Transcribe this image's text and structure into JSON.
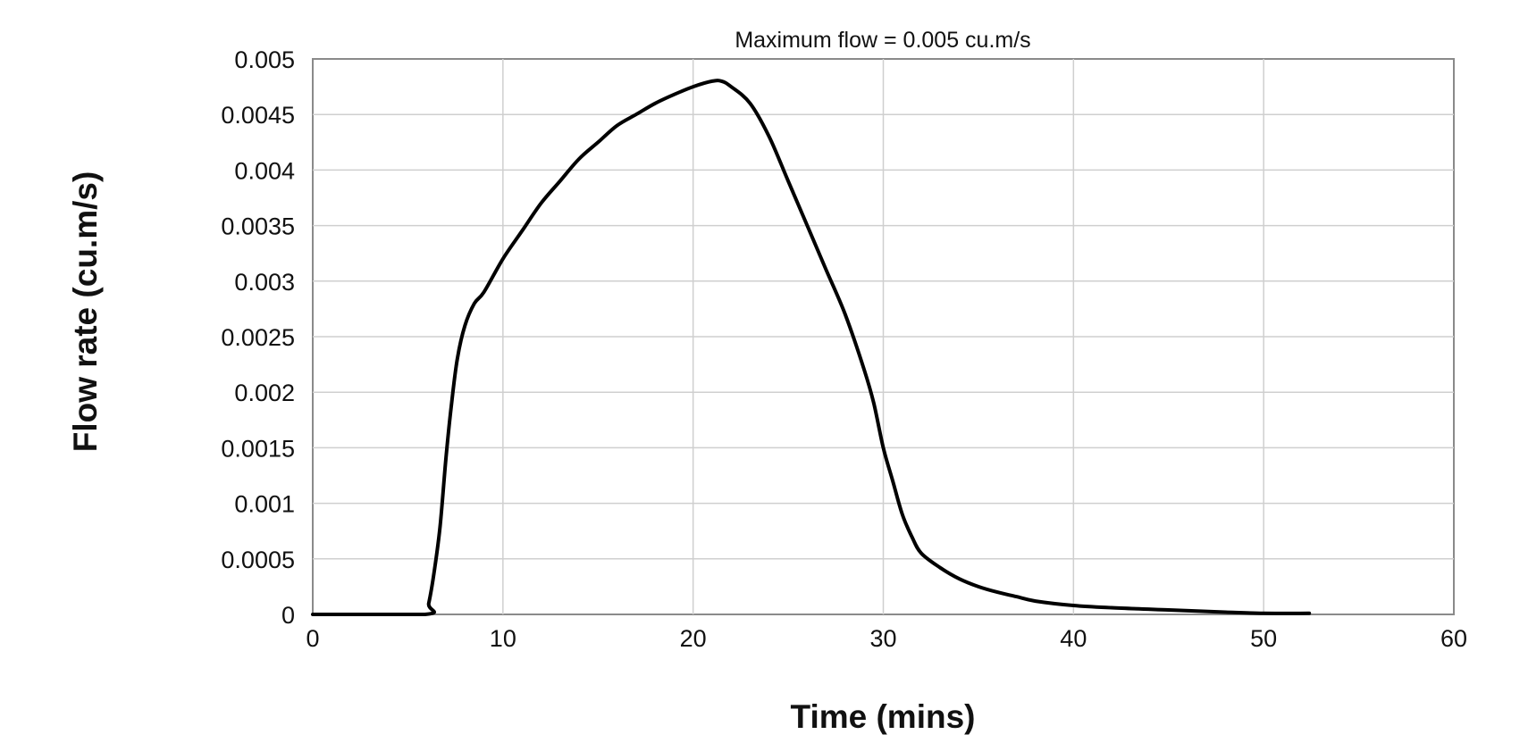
{
  "chart_data": {
    "type": "line",
    "title": "Maximum flow = 0.005 cu.m/s",
    "xlabel": "Time (mins)",
    "ylabel": "Flow rate (cu.m/s)",
    "xlim": [
      0,
      60
    ],
    "ylim": [
      0,
      0.005
    ],
    "x_ticks": [
      0,
      10,
      20,
      30,
      40,
      50,
      60
    ],
    "x_tick_labels": [
      "0",
      "10",
      "20",
      "30",
      "40",
      "50",
      "60"
    ],
    "y_ticks": [
      0,
      0.0005,
      0.001,
      0.0015,
      0.002,
      0.0025,
      0.003,
      0.0035,
      0.004,
      0.0045,
      0.005
    ],
    "y_tick_labels": [
      "0",
      "0.0005",
      "0.001",
      "0.0015",
      "0.002",
      "0.0025",
      "0.003",
      "0.0035",
      "0.004",
      "0.0045",
      "0.005"
    ],
    "grid": true,
    "colors": {
      "line": "#000000",
      "grid": "#cfcfcf",
      "frame": "#8a8a8a",
      "background": "#ffffff"
    },
    "series": [
      {
        "x": [
          0,
          5.9,
          6.1,
          6.4,
          6.7,
          7.0,
          7.3,
          7.6,
          8.0,
          8.5,
          9.0,
          10.0,
          11.0,
          12.0,
          13.0,
          14.0,
          15.0,
          16.0,
          17.0,
          18.0,
          19.0,
          20.0,
          21.0,
          21.5,
          22.0,
          23.0,
          24.0,
          25.0,
          26.0,
          27.0,
          28.0,
          29.0,
          29.5,
          30.0,
          30.5,
          31.0,
          31.5,
          32.0,
          33.0,
          34.0,
          35.0,
          36.0,
          37.0,
          38.0,
          40.0,
          42.0,
          45.0,
          48.0,
          50.0,
          52.4
        ],
        "y": [
          0,
          0,
          0.0001,
          0.0004,
          0.0008,
          0.0014,
          0.0019,
          0.0023,
          0.0026,
          0.0028,
          0.0029,
          0.0032,
          0.00345,
          0.0037,
          0.0039,
          0.0041,
          0.00425,
          0.0044,
          0.0045,
          0.0046,
          0.00468,
          0.00475,
          0.0048,
          0.0048,
          0.00475,
          0.0046,
          0.0043,
          0.0039,
          0.0035,
          0.0031,
          0.0027,
          0.0022,
          0.0019,
          0.0015,
          0.0012,
          0.0009,
          0.0007,
          0.00055,
          0.00042,
          0.00032,
          0.00025,
          0.0002,
          0.00016,
          0.00012,
          8e-05,
          6e-05,
          4e-05,
          2e-05,
          1e-05,
          1e-05
        ]
      }
    ]
  }
}
